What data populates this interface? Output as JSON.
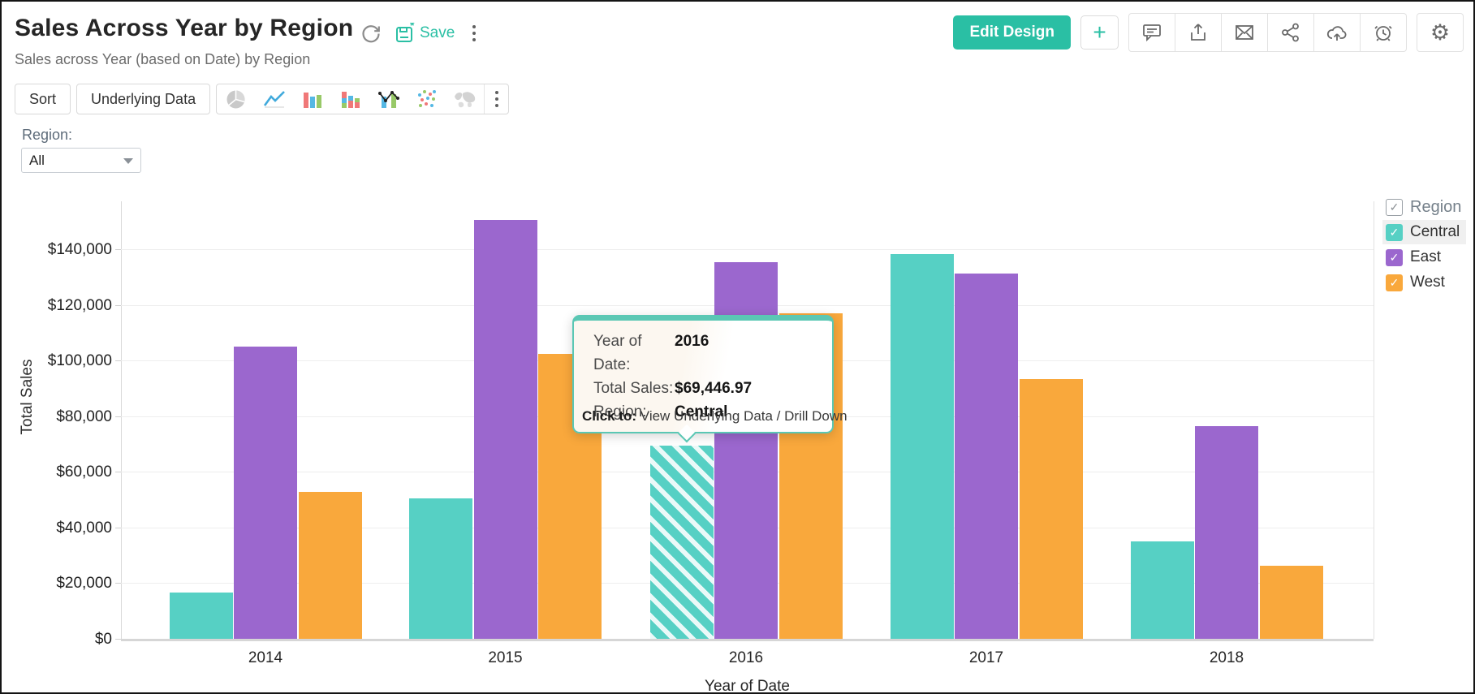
{
  "header": {
    "title": "Sales Across Year by Region",
    "subtitle": "Sales across Year (based on Date) by Region",
    "save_label": "Save",
    "edit_design_label": "Edit Design",
    "accent_color": "#2abfa4"
  },
  "toolbar": {
    "sort_label": "Sort",
    "underlying_data_label": "Underlying Data",
    "chart_type_icons": [
      "pie-chart-icon",
      "line-chart-icon",
      "bar-chart-icon",
      "stacked-bar-chart-icon",
      "combo-chart-icon",
      "scatter-chart-icon",
      "map-chart-icon"
    ]
  },
  "filter": {
    "label": "Region:",
    "value": "All"
  },
  "chart_data": {
    "type": "bar",
    "categories": [
      "2014",
      "2015",
      "2016",
      "2017",
      "2018"
    ],
    "series": [
      {
        "name": "Central",
        "color": "#56d0c4",
        "checked": true,
        "values": [
          16550,
          50600,
          69446.97,
          138400,
          34900
        ]
      },
      {
        "name": "East",
        "color": "#9b67ce",
        "checked": true,
        "values": [
          105100,
          150600,
          135400,
          131300,
          76500
        ]
      },
      {
        "name": "West",
        "color": "#f9a83c",
        "checked": true,
        "values": [
          52800,
          102400,
          117100,
          93450,
          26400
        ]
      }
    ],
    "xlabel": "Year of Date",
    "ylabel": "Total Sales",
    "ylim": [
      0,
      157300
    ],
    "y_tick_step": 20000,
    "y_tick_max": 140000,
    "y_tick_prefix": "$",
    "grid": true,
    "legend_title": "Region",
    "legend_position": "right",
    "highlight": {
      "category": "2016",
      "series": "Central"
    }
  },
  "tooltip": {
    "rows": [
      {
        "label": "Year of Date:",
        "value": "2016"
      },
      {
        "label": "Total Sales:",
        "value": "$69,446.97"
      },
      {
        "label": "Region:",
        "value": "Central"
      }
    ],
    "click_label": "Click to:",
    "click_text": "View Underlying Data / Drill Down"
  }
}
